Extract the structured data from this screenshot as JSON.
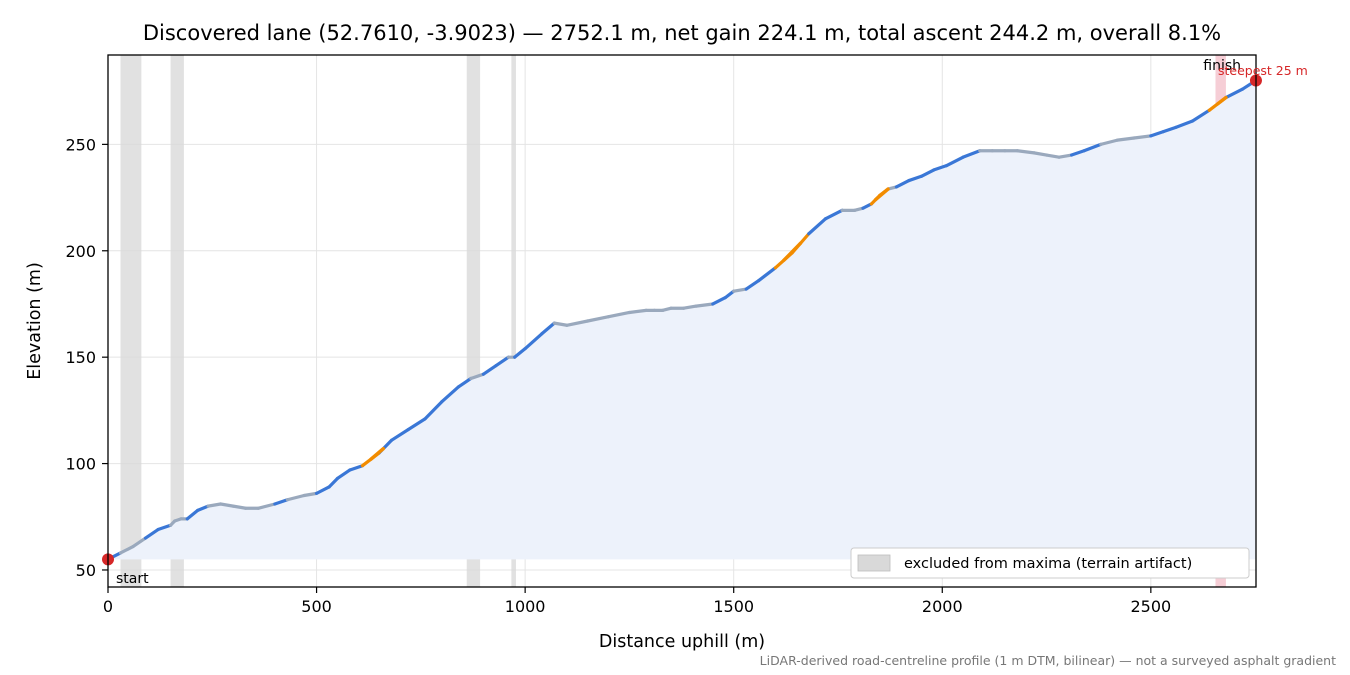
{
  "chart_data": {
    "type": "area",
    "title": "Discovered lane (52.7610, -3.9023) — 2752.1 m, net gain 224.1 m, total ascent 244.2 m, overall 8.1%",
    "xlabel": "Distance uphill (m)",
    "ylabel": "Elevation (m)",
    "xlim": [
      0,
      2752.1
    ],
    "ylim": [
      42,
      292
    ],
    "baseline": 55,
    "x_ticks": [
      0,
      500,
      1000,
      1500,
      2000,
      2500
    ],
    "y_ticks": [
      50,
      100,
      150,
      200,
      250
    ],
    "grid": true,
    "profile": {
      "x": [
        0,
        30,
        60,
        90,
        120,
        150,
        160,
        175,
        190,
        215,
        240,
        270,
        300,
        330,
        360,
        400,
        430,
        470,
        500,
        530,
        550,
        580,
        610,
        650,
        680,
        720,
        760,
        800,
        840,
        870,
        900,
        930,
        960,
        975,
        1000,
        1040,
        1070,
        1100,
        1150,
        1200,
        1250,
        1290,
        1310,
        1330,
        1350,
        1380,
        1410,
        1450,
        1480,
        1500,
        1530,
        1560,
        1600,
        1640,
        1680,
        1720,
        1760,
        1790,
        1810,
        1830,
        1850,
        1870,
        1890,
        1920,
        1950,
        1980,
        2010,
        2050,
        2090,
        2120,
        2150,
        2180,
        2220,
        2250,
        2280,
        2310,
        2340,
        2380,
        2420,
        2460,
        2500,
        2530,
        2560,
        2600,
        2640,
        2680,
        2720,
        2752
      ],
      "y": [
        55,
        58,
        61,
        65,
        69,
        71,
        73,
        74,
        74,
        78,
        80,
        81,
        80,
        79,
        79,
        81,
        83,
        85,
        86,
        89,
        93,
        97,
        99,
        105,
        111,
        116,
        121,
        129,
        136,
        140,
        142,
        146,
        150,
        150,
        154,
        161,
        166,
        165,
        167,
        169,
        171,
        172,
        172,
        172,
        173,
        173,
        174,
        175,
        178,
        181,
        182,
        186,
        192,
        199,
        208,
        215,
        219,
        219,
        220,
        222,
        226,
        229,
        230,
        233,
        235,
        238,
        240,
        244,
        247,
        247,
        247,
        247,
        246,
        245,
        244,
        245,
        247,
        250,
        252,
        253,
        254,
        256,
        258,
        261,
        266,
        272,
        276,
        280
      ]
    },
    "grade_highlights": [
      [
        630,
        660
      ],
      [
        1620,
        1660
      ],
      [
        1840,
        1870
      ],
      [
        2660,
        2680
      ]
    ],
    "excluded_ranges": [
      [
        30,
        80
      ],
      [
        150,
        182
      ],
      [
        860,
        892
      ],
      [
        967,
        978
      ]
    ],
    "steepest_range": [
      2655,
      2680
    ],
    "start_point": {
      "x": 0,
      "y": 55
    },
    "finish_point": {
      "x": 2752,
      "y": 280
    },
    "annotations": {
      "start": "start",
      "finish": "finish",
      "steepest": "steepest 25 m"
    },
    "legend": {
      "entries": [
        "excluded from maxima (terrain artifact)"
      ],
      "placement": "lower-right"
    },
    "footnote": "LiDAR-derived road-centreline profile (1 m DTM, bilinear) — not a surveyed asphalt gradient"
  },
  "colors": {
    "line_main": "#3a77d6",
    "line_muted": "#9aa9bd",
    "line_steep": "#f28c00",
    "fill": "#edf2fb",
    "excluded_band": "#d9d9d9",
    "steepest_band": "#f5c6cf",
    "endpoint": "#d62728",
    "grid": "#e4e4e4"
  }
}
